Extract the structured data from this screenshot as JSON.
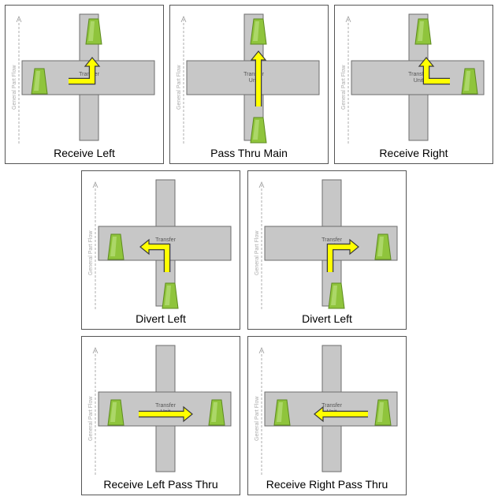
{
  "flow_label": "General Part Flow",
  "unit_label_line1": "Transfer",
  "unit_label_line2": "Unit",
  "colors": {
    "conveyor": "#c7c7c7",
    "conveyor_border": "#6e6e6e",
    "arrow_fill": "#ffff00",
    "arrow_stroke": "#3a3a3a",
    "part_fill": "#8fc43c",
    "panel_border": "#555555"
  },
  "panels": [
    {
      "id": "receive-left",
      "caption": "Receive Left",
      "arrow": "left-to-up",
      "parts": [
        "top",
        "left"
      ]
    },
    {
      "id": "pass-thru-main",
      "caption": "Pass Thru Main",
      "arrow": "bottom-to-top",
      "parts": [
        "top",
        "bottom"
      ]
    },
    {
      "id": "receive-right",
      "caption": "Receive Right",
      "arrow": "right-to-up",
      "parts": [
        "top",
        "right"
      ]
    },
    {
      "id": "divert-left",
      "caption": "Divert Left",
      "arrow": "bottom-to-left",
      "parts": [
        "left",
        "bottom"
      ]
    },
    {
      "id": "divert-left-2",
      "caption": "Divert Left",
      "arrow": "bottom-to-right",
      "parts": [
        "right",
        "bottom"
      ]
    },
    {
      "id": "receive-left-pass-thru",
      "caption": "Receive Left Pass Thru",
      "arrow": "left-to-right",
      "parts": [
        "left",
        "right"
      ]
    },
    {
      "id": "receive-right-pass-thru",
      "caption": "Receive Right Pass Thru",
      "arrow": "right-to-left",
      "parts": [
        "left",
        "right"
      ]
    }
  ]
}
